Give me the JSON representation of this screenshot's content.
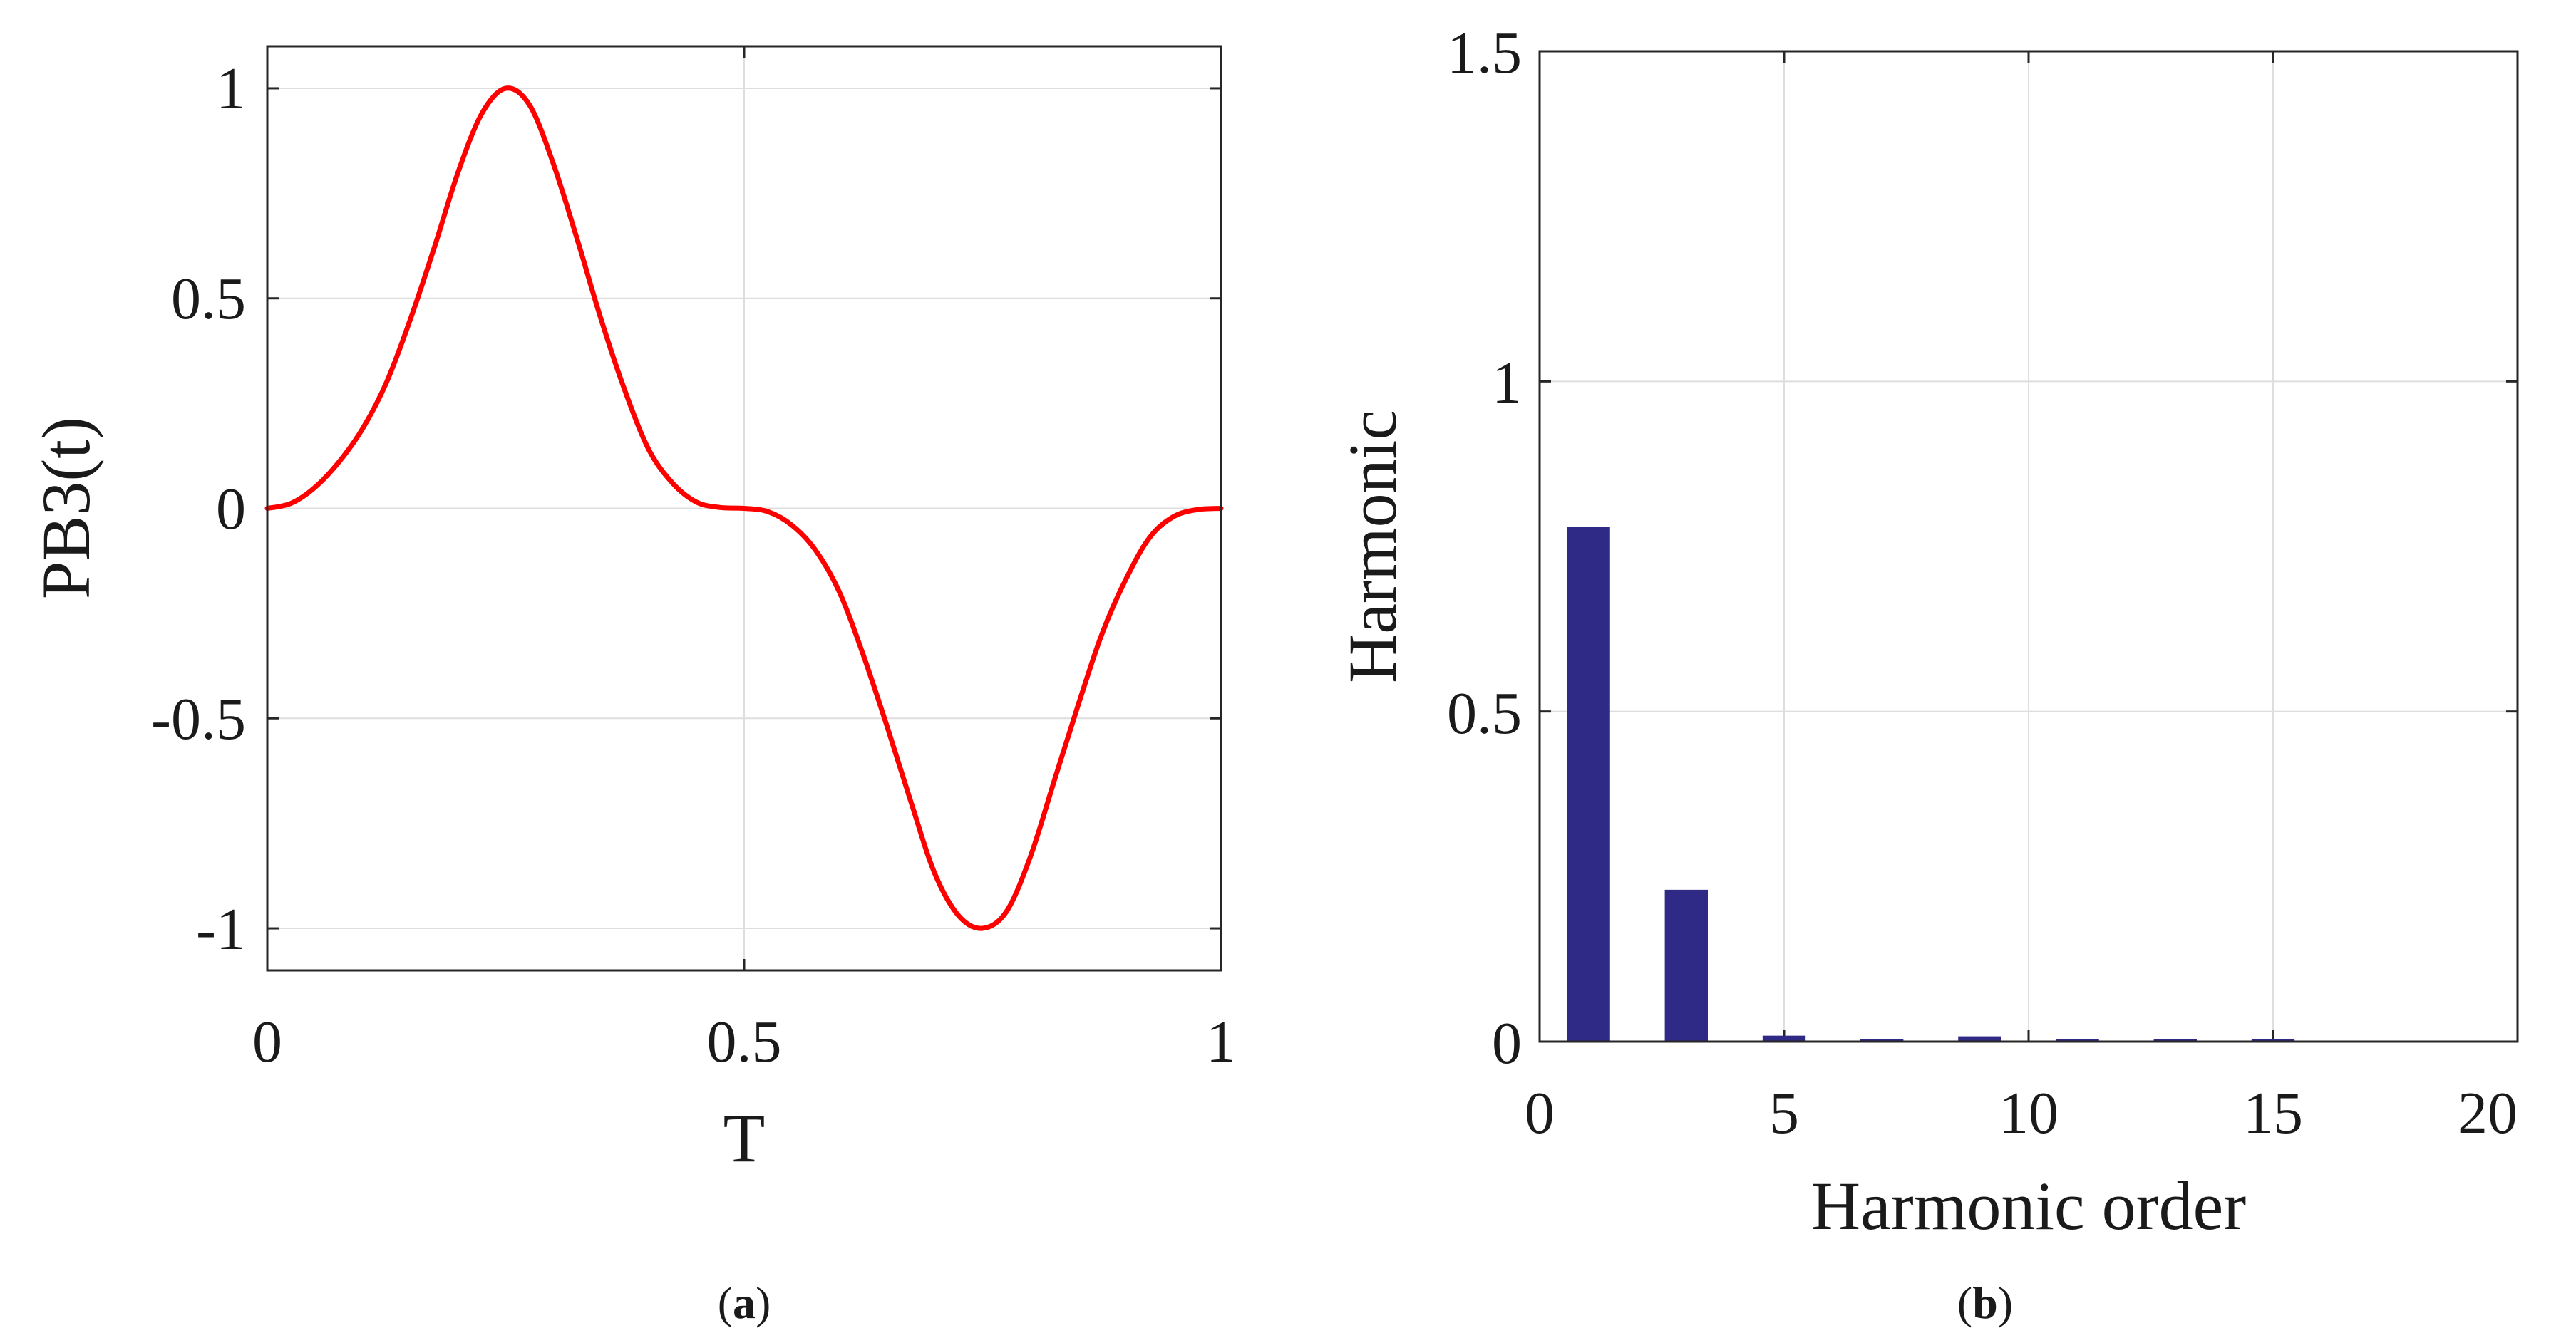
{
  "chart_data": [
    {
      "type": "line",
      "panel": "a",
      "caption_letter": "a",
      "title": "",
      "xlabel": "T",
      "ylabel": "PB3(t)",
      "xlim": [
        0,
        1
      ],
      "ylim": [
        -1.1,
        1.1
      ],
      "grid": true,
      "x_ticks": [
        0,
        0.5,
        1
      ],
      "x_tick_labels": [
        "0",
        "0.5",
        "1"
      ],
      "y_ticks": [
        1,
        0.5,
        0,
        -0.5,
        -1
      ],
      "y_tick_labels": [
        "1",
        "0.5",
        "0",
        "-0.5",
        "-1"
      ],
      "series": [
        {
          "name": "PB3(t)",
          "color": "#ff0000",
          "x": [
            0,
            0.025,
            0.05,
            0.075,
            0.1,
            0.125,
            0.15,
            0.175,
            0.2,
            0.225,
            0.25,
            0.275,
            0.3,
            0.325,
            0.35,
            0.375,
            0.4,
            0.425,
            0.45,
            0.475,
            0.5,
            0.525,
            0.55,
            0.575,
            0.6,
            0.625,
            0.65,
            0.675,
            0.7,
            0.725,
            0.75,
            0.775,
            0.8,
            0.825,
            0.85,
            0.875,
            0.9,
            0.925,
            0.95,
            0.975,
            1
          ],
          "y": [
            0,
            0.012,
            0.05,
            0.11,
            0.19,
            0.3,
            0.45,
            0.62,
            0.8,
            0.94,
            1,
            0.96,
            0.82,
            0.64,
            0.45,
            0.28,
            0.14,
            0.06,
            0.015,
            0.002,
            0,
            -0.008,
            -0.04,
            -0.1,
            -0.2,
            -0.35,
            -0.52,
            -0.7,
            -0.87,
            -0.97,
            -1,
            -0.96,
            -0.83,
            -0.65,
            -0.47,
            -0.3,
            -0.17,
            -0.07,
            -0.02,
            -0.003,
            0
          ]
        }
      ]
    },
    {
      "type": "bar",
      "panel": "b",
      "caption_letter": "b",
      "title": "",
      "xlabel": "Harmonic order",
      "ylabel": "Harmonic",
      "xlim": [
        0,
        20
      ],
      "ylim": [
        0,
        1.5
      ],
      "grid": true,
      "bar_color": "#2e2a85",
      "x_ticks": [
        0,
        5,
        10,
        15,
        20
      ],
      "x_tick_labels": [
        "0",
        "5",
        "10",
        "15",
        "20"
      ],
      "y_ticks": [
        0,
        0.5,
        1,
        1.5
      ],
      "y_tick_labels": [
        "0",
        "0.5",
        "1",
        "1.5"
      ],
      "categories": [
        1,
        3,
        5,
        7,
        9,
        11,
        13,
        15
      ],
      "values": [
        0.78,
        0.23,
        0.009,
        0.004,
        0.008,
        0.002,
        0.002,
        0.002
      ]
    }
  ]
}
